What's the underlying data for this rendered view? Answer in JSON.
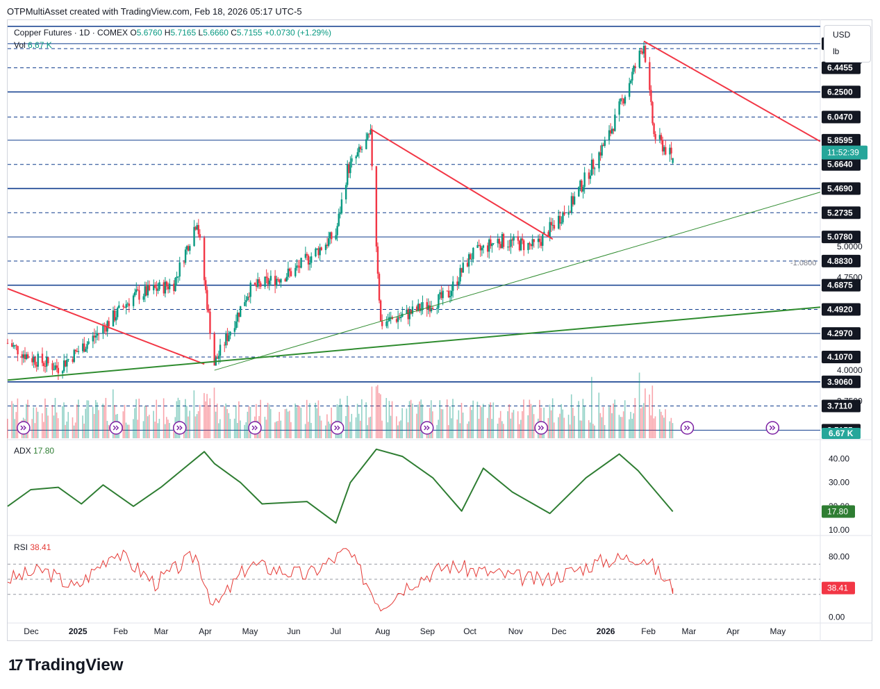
{
  "header": {
    "text": "OTPMultiAsset created with TradingView.com, Feb 18, 2026 05:17 UTC-5"
  },
  "legend": {
    "symbol": "Copper Futures · 1D · COMEX",
    "o_label": "O",
    "o_value": "5.6760",
    "h_label": "H",
    "h_value": "5.7165",
    "l_label": "L",
    "l_value": "5.6660",
    "c_label": "C",
    "c_value": "5.7155",
    "change": "+0.0730 (+1.29%)",
    "vol_label": "Vol",
    "vol_value": "6.67 K"
  },
  "units": {
    "currency": "USD",
    "unit": "lb"
  },
  "price_labels": [
    {
      "text": "6.6405",
      "value": 6.6405,
      "line": "solid"
    },
    {
      "text": "6.4455",
      "value": 6.4455,
      "line": "dashed"
    },
    {
      "text": "6.2500",
      "value": 6.25,
      "line": "solid-thick"
    },
    {
      "text": "6.0470",
      "value": 6.047,
      "line": "dashed"
    },
    {
      "text": "5.8595",
      "value": 5.8595,
      "line": "solid"
    },
    {
      "text": "5.6640",
      "value": 5.664,
      "line": "dashed"
    },
    {
      "text": "5.4690",
      "value": 5.469,
      "line": "solid-thick"
    },
    {
      "text": "5.2735",
      "value": 5.2735,
      "line": "dashed"
    },
    {
      "text": "5.0780",
      "value": 5.078,
      "line": "solid"
    },
    {
      "text": "4.8830",
      "value": 4.883,
      "line": "dashed"
    },
    {
      "text": "4.6875",
      "value": 4.6875,
      "line": "solid-thick"
    },
    {
      "text": "4.4920",
      "value": 4.492,
      "line": "dashed"
    },
    {
      "text": "4.2970",
      "value": 4.297,
      "line": "solid"
    },
    {
      "text": "4.1070",
      "value": 4.107,
      "line": "dashed"
    },
    {
      "text": "3.9060",
      "value": 3.906,
      "line": "solid-thick"
    },
    {
      "text": "3.7110",
      "value": 3.711,
      "line": "dashed"
    },
    {
      "text": "3.5155",
      "value": 3.5155,
      "line": "solid"
    }
  ],
  "price_ticks": [
    {
      "text": "6.5000",
      "value": 6.5
    },
    {
      "text": "5.0000",
      "value": 5.0
    },
    {
      "text": "4.7500",
      "value": 4.75
    },
    {
      "text": "4.0000",
      "value": 4.0
    },
    {
      "text": "3.7500",
      "value": 3.75
    }
  ],
  "countdown": "11:52:39",
  "volume_label": "6.67 K",
  "measure_label": "-1.0800",
  "accent_colors": {
    "up": "#089981",
    "down": "#f23645",
    "level_line": "#0d3a8c",
    "trend_red": "#f23645",
    "trend_green": "#2e8b2e",
    "adx": "#2e7d32",
    "rsi": "#e53935",
    "countdown_bg": "#26a69a",
    "label_bg": "#131722",
    "rsi_label_bg": "#f23645",
    "adx_label_bg": "#2e7d32"
  },
  "adx": {
    "label": "ADX",
    "value": "17.80",
    "ticks": [
      "40.00",
      "30.00",
      "20.00",
      "10.00"
    ]
  },
  "rsi": {
    "label": "RSI",
    "value": "38.41",
    "ticks": [
      "80.00",
      "0.00"
    ]
  },
  "time_axis": [
    "Dec",
    "2025",
    "Feb",
    "Mar",
    "Apr",
    "May",
    "Jun",
    "Jul",
    "Aug",
    "Sep",
    "Oct",
    "Nov",
    "Dec",
    "2026",
    "Feb",
    "Mar",
    "Apr",
    "May"
  ],
  "brand": "TradingView",
  "chart_data": [
    {
      "type": "candlestick",
      "title": "Copper Futures · 1D · COMEX",
      "price_range": [
        3.45,
        6.78
      ],
      "x_range": [
        "2024-11-15",
        "2026-05-31"
      ],
      "key_price_path": [
        {
          "date": "2024-11-15",
          "price": 4.22
        },
        {
          "date": "2024-12-01",
          "price": 4.1
        },
        {
          "date": "2024-12-20",
          "price": 4.02
        },
        {
          "date": "2025-01-15",
          "price": 4.28
        },
        {
          "date": "2025-02-10",
          "price": 4.6
        },
        {
          "date": "2025-03-10",
          "price": 4.7
        },
        {
          "date": "2025-03-26",
          "price": 5.22
        },
        {
          "date": "2025-04-07",
          "price": 4.05
        },
        {
          "date": "2025-05-01",
          "price": 4.65
        },
        {
          "date": "2025-06-01",
          "price": 4.8
        },
        {
          "date": "2025-06-30",
          "price": 5.1
        },
        {
          "date": "2025-07-08",
          "price": 5.62
        },
        {
          "date": "2025-07-24",
          "price": 5.89
        },
        {
          "date": "2025-07-31",
          "price": 4.38
        },
        {
          "date": "2025-08-20",
          "price": 4.46
        },
        {
          "date": "2025-09-15",
          "price": 4.6
        },
        {
          "date": "2025-10-01",
          "price": 4.92
        },
        {
          "date": "2025-10-20",
          "price": 5.05
        },
        {
          "date": "2025-11-15",
          "price": 5.0
        },
        {
          "date": "2025-12-10",
          "price": 5.35
        },
        {
          "date": "2026-01-05",
          "price": 5.9
        },
        {
          "date": "2026-01-29",
          "price": 6.64
        },
        {
          "date": "2026-02-05",
          "price": 5.9
        },
        {
          "date": "2026-02-18",
          "price": 5.7155
        }
      ],
      "last": {
        "open": 5.676,
        "high": 5.7165,
        "low": 5.666,
        "close": 5.7155
      }
    },
    {
      "type": "line",
      "title": "ADX",
      "last_value": 17.8,
      "ylim": [
        8,
        46
      ],
      "key_points": [
        {
          "date": "2024-11-15",
          "value": 20
        },
        {
          "date": "2024-12-01",
          "value": 27
        },
        {
          "date": "2024-12-20",
          "value": 28
        },
        {
          "date": "2025-01-05",
          "value": 21
        },
        {
          "date": "2025-01-20",
          "value": 29
        },
        {
          "date": "2025-02-10",
          "value": 20
        },
        {
          "date": "2025-03-01",
          "value": 28
        },
        {
          "date": "2025-03-31",
          "value": 43
        },
        {
          "date": "2025-04-07",
          "value": 38
        },
        {
          "date": "2025-04-25",
          "value": 30
        },
        {
          "date": "2025-05-10",
          "value": 21
        },
        {
          "date": "2025-06-10",
          "value": 22
        },
        {
          "date": "2025-06-30",
          "value": 13
        },
        {
          "date": "2025-07-10",
          "value": 30
        },
        {
          "date": "2025-07-28",
          "value": 44
        },
        {
          "date": "2025-08-15",
          "value": 41
        },
        {
          "date": "2025-09-05",
          "value": 32
        },
        {
          "date": "2025-09-25",
          "value": 18
        },
        {
          "date": "2025-10-10",
          "value": 36
        },
        {
          "date": "2025-10-30",
          "value": 26
        },
        {
          "date": "2025-11-25",
          "value": 17
        },
        {
          "date": "2025-12-20",
          "value": 32
        },
        {
          "date": "2026-01-12",
          "value": 42
        },
        {
          "date": "2026-01-25",
          "value": 35
        },
        {
          "date": "2026-02-18",
          "value": 17.8
        }
      ]
    },
    {
      "type": "line",
      "title": "RSI",
      "last_value": 38.41,
      "ylim": [
        -6,
        106
      ],
      "levels": [
        70,
        50,
        30
      ],
      "key_points": [
        {
          "date": "2024-11-15",
          "value": 50
        },
        {
          "date": "2024-12-10",
          "value": 62
        },
        {
          "date": "2025-01-01",
          "value": 38
        },
        {
          "date": "2025-01-28",
          "value": 88
        },
        {
          "date": "2025-02-25",
          "value": 45
        },
        {
          "date": "2025-03-25",
          "value": 82
        },
        {
          "date": "2025-04-07",
          "value": 12
        },
        {
          "date": "2025-05-01",
          "value": 70
        },
        {
          "date": "2025-06-10",
          "value": 55
        },
        {
          "date": "2025-07-08",
          "value": 88
        },
        {
          "date": "2025-07-31",
          "value": 15
        },
        {
          "date": "2025-08-20",
          "value": 45
        },
        {
          "date": "2025-09-15",
          "value": 68
        },
        {
          "date": "2025-10-10",
          "value": 60
        },
        {
          "date": "2025-11-20",
          "value": 48
        },
        {
          "date": "2026-01-02",
          "value": 75
        },
        {
          "date": "2026-01-29",
          "value": 80
        },
        {
          "date": "2026-02-18",
          "value": 38.41
        }
      ]
    }
  ]
}
